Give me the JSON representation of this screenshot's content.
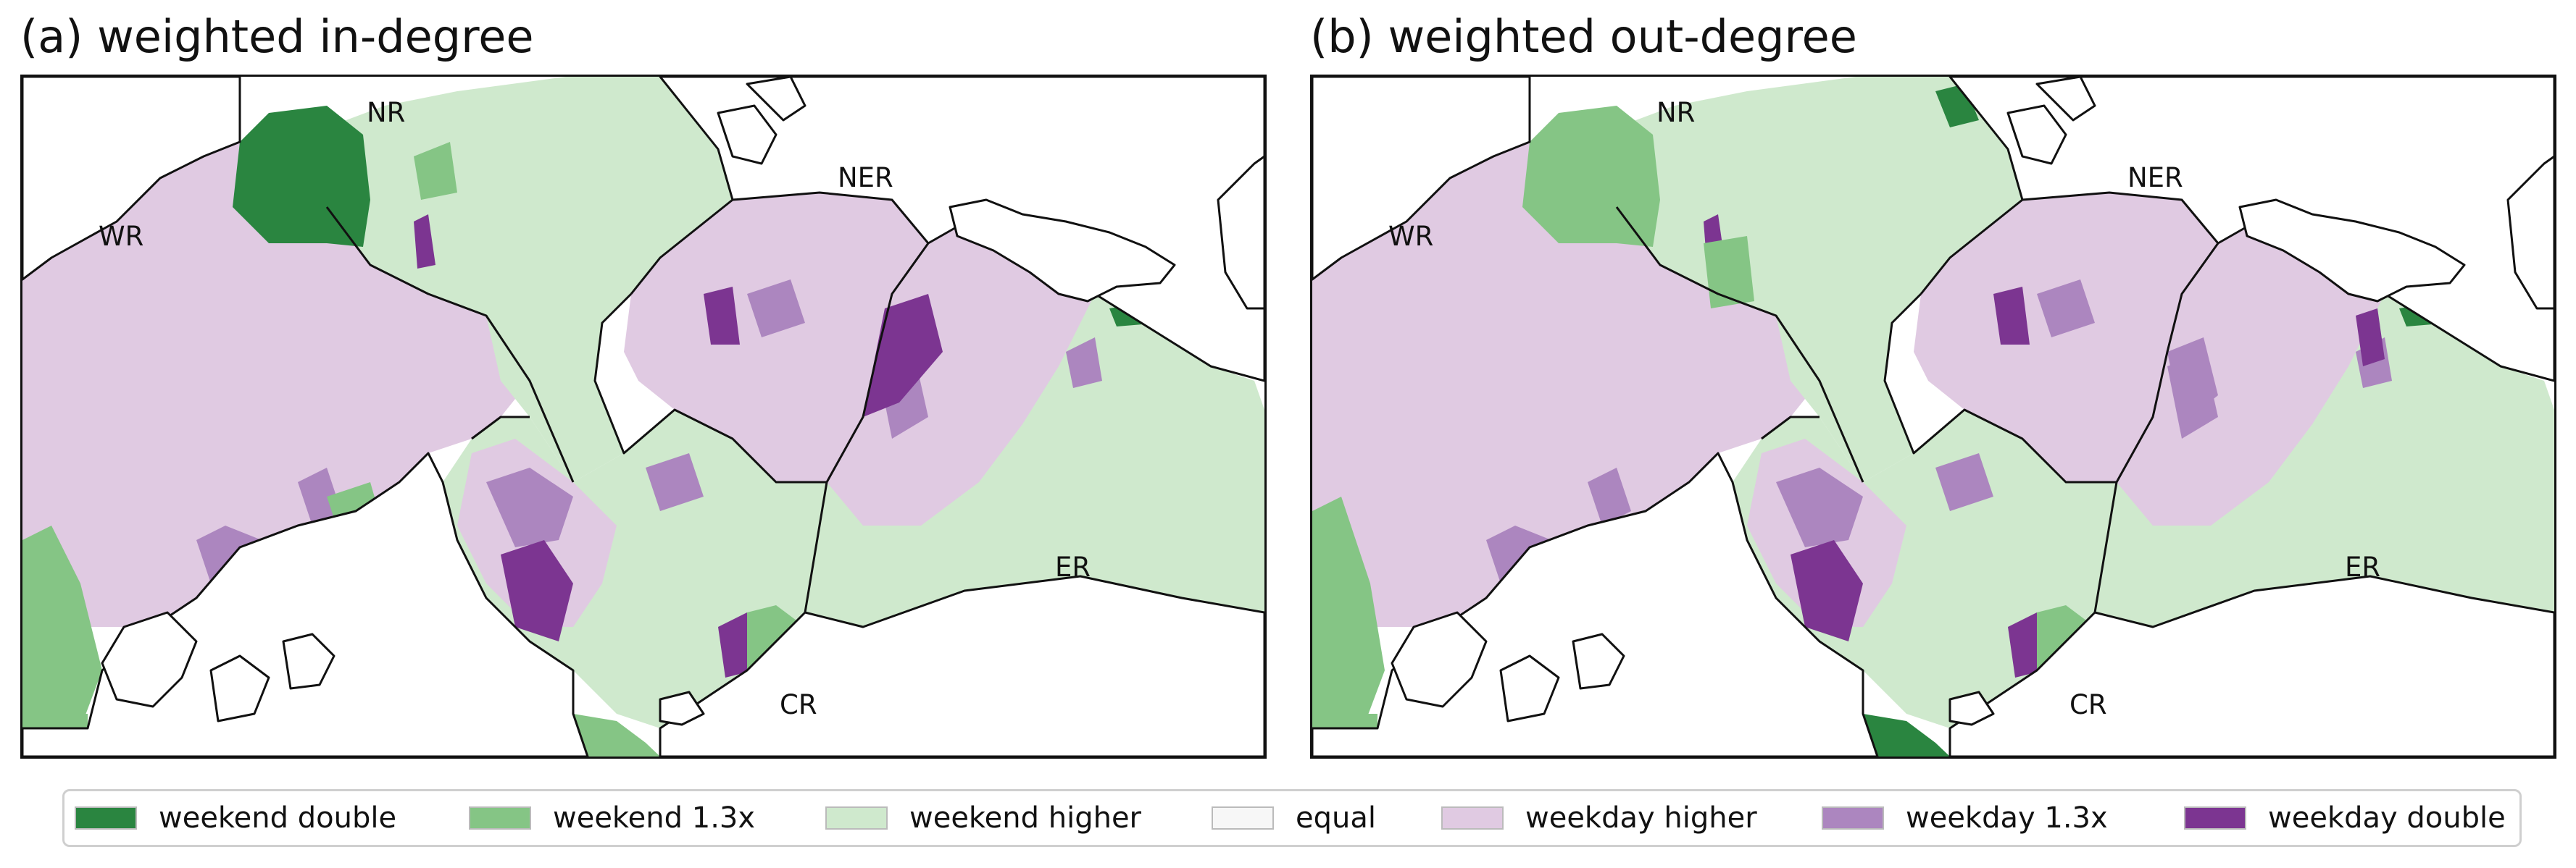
{
  "panels": [
    {
      "id": "in",
      "title": "(a) weighted in-degree"
    },
    {
      "id": "out",
      "title": "(b) weighted out-degree"
    }
  ],
  "regions": [
    "NR",
    "NER",
    "WR",
    "ER",
    "CR"
  ],
  "legend": [
    {
      "label": "weekend double",
      "color": "#2a8540"
    },
    {
      "label": "weekend 1.3x",
      "color": "#85c585"
    },
    {
      "label": "weekend higher",
      "color": "#cfe9cd"
    },
    {
      "label": "equal",
      "color": "#f7f7f7"
    },
    {
      "label": "weekday higher",
      "color": "#e0cae2"
    },
    {
      "label": "weekday 1.3x",
      "color": "#ac86bf"
    },
    {
      "label": "weekday double",
      "color": "#7c3591"
    }
  ]
}
